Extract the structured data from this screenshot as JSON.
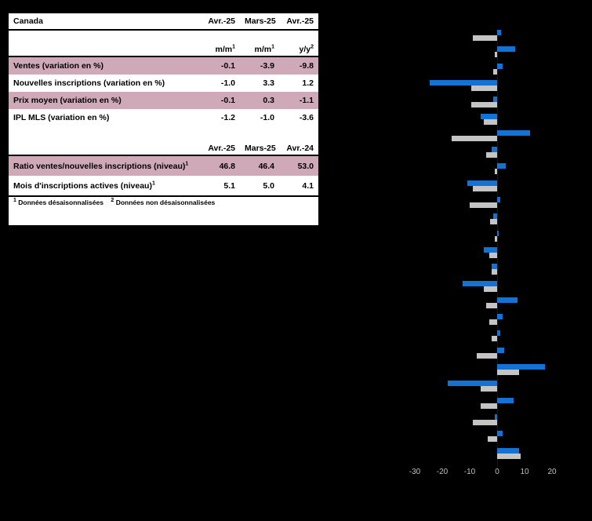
{
  "table": {
    "title": "Canada",
    "header1": [
      "Avr.-25",
      "Mars-25",
      "Avr.-25"
    ],
    "subheader": [
      {
        "base": "m/m",
        "sup": "1"
      },
      {
        "base": "m/m",
        "sup": "1"
      },
      {
        "base": "y/y",
        "sup": "2"
      }
    ],
    "rows1": [
      {
        "label": "Ventes (variation en %)",
        "sup": "",
        "values": [
          "-0.1",
          "-3.9",
          "-9.8"
        ],
        "highlight": true
      },
      {
        "label": "Nouvelles inscriptions (variation en %)",
        "sup": "",
        "values": [
          "-1.0",
          "3.3",
          "1.2"
        ],
        "highlight": false
      },
      {
        "label": "Prix moyen (variation en %)",
        "sup": "",
        "values": [
          "-0.1",
          "0.3",
          "-1.1"
        ],
        "highlight": true
      },
      {
        "label": "IPL MLS (variation en %)",
        "sup": "",
        "values": [
          "-1.2",
          "-1.0",
          "-3.6"
        ],
        "highlight": false
      }
    ],
    "header3": [
      "Avr.-25",
      "Mars-25",
      "Avr.-24"
    ],
    "rows2": [
      {
        "label": "Ratio ventes/nouvelles inscriptions (niveau)",
        "sup": "1",
        "values": [
          "46.8",
          "46.4",
          "53.0"
        ],
        "highlight": true
      },
      {
        "label": "Mois d'inscriptions actives (niveau)",
        "sup": "1",
        "values": [
          "5.1",
          "5.0",
          "4.1"
        ],
        "highlight": false
      }
    ],
    "footnotes": [
      {
        "sup": "1",
        "text": "Données désaisonnalisées"
      },
      {
        "sup": "2",
        "text": "Données non désaisonnalisées"
      }
    ]
  },
  "chart": {
    "colors": {
      "blue": "#1472d4",
      "gray": "#c4c4c4",
      "tick_text": "#c0c0c0"
    }
  },
  "chart_data": {
    "type": "bar",
    "orientation": "horizontal",
    "note": "category labels, title and legend are not legible in the screenshot (black text on black background); bar values estimated from axis scale",
    "categories": [
      "",
      "",
      "",
      "",
      "",
      "",
      "",
      "",
      "",
      "",
      "",
      "",
      "",
      "",
      "",
      "",
      "",
      "",
      "",
      "",
      "",
      "",
      "",
      "",
      "",
      ""
    ],
    "series": [
      {
        "name": "blue-series",
        "values": [
          1.5,
          6.5,
          2.0,
          -24.5,
          -1.5,
          -6.0,
          12.0,
          -2.0,
          3.0,
          -11.0,
          1.0,
          -1.5,
          0.5,
          -5.0,
          -2.0,
          -12.5,
          7.5,
          2.0,
          1.0,
          2.5,
          17.5,
          -18.0,
          6.0,
          -1.0,
          2.0,
          8.0
        ]
      },
      {
        "name": "gray-series",
        "values": [
          -9.0,
          -1.0,
          -1.5,
          -9.5,
          -9.5,
          -5.0,
          -16.5,
          -4.0,
          -1.0,
          -9.0,
          -10.0,
          -2.5,
          -1.0,
          -3.0,
          -2.0,
          -5.0,
          -4.0,
          -3.0,
          -2.0,
          -7.5,
          8.0,
          -6.0,
          -6.0,
          -9.0,
          -3.5,
          8.5
        ]
      }
    ],
    "xlim": [
      -30,
      20
    ],
    "xticks": [
      "-30",
      "-20",
      "-10",
      "0",
      "10",
      "20"
    ],
    "grid": false,
    "legend_visible": false
  }
}
